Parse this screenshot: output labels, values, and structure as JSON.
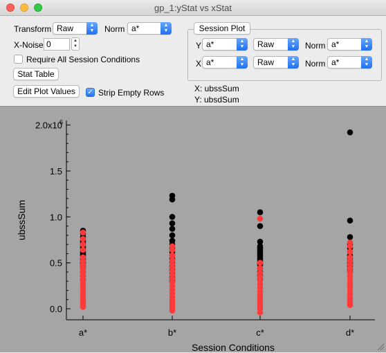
{
  "window": {
    "title": "gp_1:yStat vs xStat"
  },
  "controls": {
    "transform_label": "Transform",
    "transform_value": "Raw",
    "norm_label": "Norm",
    "norm_value": "a*",
    "xnoise_label": "X-Noise",
    "xnoise_value": "0",
    "require_label": "Require All Session Conditions",
    "require_checked": false,
    "stat_table_label": "Stat Table",
    "edit_plot_values_label": "Edit Plot Values",
    "strip_empty_rows_label": "Strip Empty Rows",
    "strip_empty_rows_checked": true
  },
  "session_plot": {
    "button_label": "Session Plot",
    "y_axis_label": "Y",
    "y_condition": "a*",
    "y_transform": "Raw",
    "y_norm_label": "Norm",
    "y_norm": "a*",
    "x_axis_label": "X",
    "x_condition": "a*",
    "x_transform": "Raw",
    "x_norm_label": "Norm",
    "x_norm": "a*"
  },
  "axis_info": {
    "x_line": "X: ubssSum",
    "y_line": "Y: ubsdSum"
  },
  "colors": {
    "background": "#a5a5a5",
    "marker_black": "#000000",
    "marker_red": "#ff3a3a"
  },
  "chart_data": {
    "type": "scatter",
    "xlabel": "Session Conditions",
    "ylabel": "ubssSum",
    "categories": [
      "a*",
      "b*",
      "c*",
      "d*"
    ],
    "ylim": [
      -120000.0,
      2050000.0
    ],
    "yticks": [
      0,
      0.5,
      1.0,
      1.5,
      2.0
    ],
    "ytick_labels": [
      "0.0",
      "0.5",
      "1.0",
      "1.5",
      "2.0x10"
    ],
    "ytick_top_exponent": "6",
    "grid": false,
    "series": [
      {
        "color": "black",
        "points": [
          {
            "x": "a*",
            "y": [
              0.85,
              0.82,
              0.78,
              0.74,
              0.72,
              0.7,
              0.68,
              0.66,
              0.64,
              0.62,
              0.6,
              0.58,
              0.56,
              0.54,
              0.52,
              0.5,
              0.48,
              0.46,
              0.44,
              0.4,
              0.36,
              0.32
            ]
          },
          {
            "x": "b*",
            "y": [
              1.23,
              1.19,
              1.0,
              0.93,
              0.87,
              0.8,
              0.74,
              0.7,
              0.66,
              0.62,
              0.58,
              0.54,
              0.5,
              0.46,
              0.42,
              0.38,
              0.34,
              0.3
            ]
          },
          {
            "x": "c*",
            "y": [
              1.05,
              0.9,
              0.73,
              0.68,
              0.66,
              0.64,
              0.62,
              0.6,
              0.58,
              0.56,
              0.54,
              0.52,
              0.5,
              0.48,
              0.44,
              0.4,
              0.36,
              0.32
            ]
          },
          {
            "x": "d*",
            "y": [
              1.92,
              0.96,
              0.78,
              0.7,
              0.66,
              0.62,
              0.58,
              0.55,
              0.52,
              0.5,
              0.48,
              0.46,
              0.43,
              0.4
            ]
          }
        ]
      },
      {
        "color": "red",
        "points": [
          {
            "x": "a*",
            "y": [
              0.83,
              0.76,
              0.7,
              0.64,
              0.56,
              0.52,
              0.48,
              0.45,
              0.42,
              0.39,
              0.36,
              0.33,
              0.3,
              0.27,
              0.24,
              0.21,
              0.18,
              0.15,
              0.12,
              0.1,
              0.08,
              0.06,
              0.04,
              0.02
            ]
          },
          {
            "x": "b*",
            "y": [
              0.68,
              0.64,
              0.58,
              0.53,
              0.49,
              0.45,
              0.41,
              0.37,
              0.33,
              0.29,
              0.25,
              0.21,
              0.17,
              0.13,
              0.1,
              0.07,
              0.04,
              0.01,
              -0.02
            ]
          },
          {
            "x": "c*",
            "y": [
              0.98,
              0.5,
              0.44,
              0.39,
              0.35,
              0.31,
              0.27,
              0.23,
              0.19,
              0.15,
              0.12,
              0.09,
              0.06,
              0.03,
              0.0,
              -0.04
            ]
          },
          {
            "x": "d*",
            "y": [
              0.72,
              0.68,
              0.62,
              0.56,
              0.52,
              0.48,
              0.44,
              0.4,
              0.36,
              0.32,
              0.28,
              0.24,
              0.2,
              0.16,
              0.12,
              0.09,
              0.06,
              0.04
            ]
          }
        ]
      }
    ]
  }
}
